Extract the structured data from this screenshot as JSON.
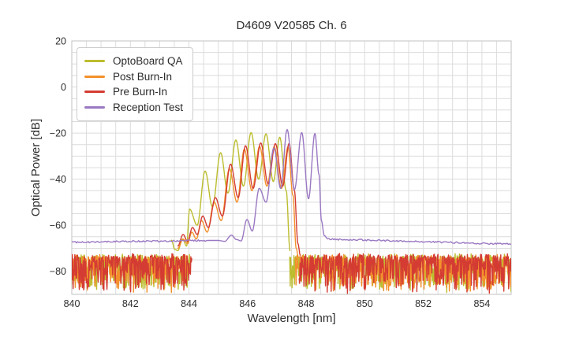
{
  "chart_data": {
    "type": "line",
    "title": "D4609 V20585 Ch. 6",
    "xlabel": "Wavelength [nm]",
    "ylabel": "Optical Power [dB]",
    "xlim": [
      840,
      855
    ],
    "ylim": [
      -90,
      20
    ],
    "xticks": [
      840,
      842,
      844,
      846,
      848,
      850,
      852,
      854
    ],
    "yticks": [
      20,
      0,
      -20,
      -40,
      -60,
      -80
    ],
    "grid": {
      "x_step": 0.5,
      "y_step": 5,
      "color": "#dcdcdc",
      "border_color": "#cccccc"
    },
    "legend": {
      "position": "upper-left"
    },
    "series": [
      {
        "name": "OptoBoard QA",
        "color": "#bcbd2f",
        "peaks_nm_db": [
          [
            844.02,
            -53
          ],
          [
            844.55,
            -36.5
          ],
          [
            845.08,
            -28.5
          ],
          [
            845.6,
            -23
          ],
          [
            846.12,
            -19.8
          ],
          [
            846.63,
            -20.3
          ],
          [
            847.1,
            -21.8
          ]
        ],
        "profile": [
          [
            843.4,
            -66.5
          ],
          [
            843.52,
            -70.5
          ],
          [
            843.62,
            -71
          ],
          [
            843.78,
            -66
          ],
          [
            843.92,
            -69
          ],
          [
            844.02,
            -53
          ],
          [
            844.28,
            -60
          ],
          [
            844.55,
            -36.5
          ],
          [
            844.8,
            -52
          ],
          [
            845.08,
            -28.5
          ],
          [
            845.33,
            -46
          ],
          [
            845.6,
            -23
          ],
          [
            845.86,
            -43
          ],
          [
            846.12,
            -19.8
          ],
          [
            846.38,
            -40
          ],
          [
            846.63,
            -20.3
          ],
          [
            846.88,
            -41
          ],
          [
            847.1,
            -21.8
          ],
          [
            847.32,
            -45
          ],
          [
            847.45,
            -71
          ]
        ],
        "noise": [
          {
            "x": [
              840,
              844.05
            ],
            "level_db": [
              -73.3,
              -73.3
            ],
            "jitter_db": 1.0,
            "spike_db": 15.0,
            "step": 0.016,
            "seed": 11
          },
          {
            "x": [
              847.44,
              855
            ],
            "level_db": [
              -73.3,
              -73.3
            ],
            "jitter_db": 1.0,
            "spike_db": 15.0,
            "step": 0.016,
            "seed": 12
          }
        ]
      },
      {
        "name": "Post Burn-In",
        "color": "#f3902c",
        "peaks_nm_db": [
          [
            844.86,
            -50
          ],
          [
            845.38,
            -35.5
          ],
          [
            845.89,
            -27
          ],
          [
            846.41,
            -25.8
          ],
          [
            846.91,
            -26
          ],
          [
            847.38,
            -26
          ]
        ],
        "profile": [
          [
            843.62,
            -70
          ],
          [
            843.8,
            -66
          ],
          [
            843.95,
            -68
          ],
          [
            844.1,
            -63
          ],
          [
            844.25,
            -66
          ],
          [
            844.43,
            -58
          ],
          [
            844.62,
            -63
          ],
          [
            844.86,
            -50
          ],
          [
            845.1,
            -58
          ],
          [
            845.38,
            -35.5
          ],
          [
            845.64,
            -50
          ],
          [
            845.89,
            -27
          ],
          [
            846.15,
            -45
          ],
          [
            846.41,
            -25.8
          ],
          [
            846.66,
            -43
          ],
          [
            846.91,
            -26
          ],
          [
            847.16,
            -44
          ],
          [
            847.38,
            -26
          ],
          [
            847.55,
            -47
          ],
          [
            847.66,
            -70
          ],
          [
            847.74,
            -74
          ]
        ],
        "noise": [
          {
            "x": [
              840,
              844.0
            ],
            "level_db": [
              -73.6,
              -73.6
            ],
            "jitter_db": 1.0,
            "spike_db": 15.0,
            "step": 0.017,
            "seed": 21
          },
          {
            "x": [
              847.62,
              855
            ],
            "level_db": [
              -73.6,
              -73.6
            ],
            "jitter_db": 1.0,
            "spike_db": 15.0,
            "step": 0.017,
            "seed": 22
          }
        ]
      },
      {
        "name": "Pre Burn-In",
        "color": "#d43c33",
        "peaks_nm_db": [
          [
            844.9,
            -48
          ],
          [
            845.42,
            -33.5
          ],
          [
            845.93,
            -25.5
          ],
          [
            846.45,
            -24.3
          ],
          [
            846.95,
            -24.6
          ],
          [
            847.42,
            -24.5
          ]
        ],
        "profile": [
          [
            843.62,
            -69
          ],
          [
            843.8,
            -64
          ],
          [
            843.95,
            -67
          ],
          [
            844.12,
            -61
          ],
          [
            844.28,
            -64
          ],
          [
            844.47,
            -56
          ],
          [
            844.66,
            -61
          ],
          [
            844.9,
            -48
          ],
          [
            845.14,
            -56
          ],
          [
            845.42,
            -33.5
          ],
          [
            845.68,
            -48
          ],
          [
            845.93,
            -25.5
          ],
          [
            846.19,
            -44
          ],
          [
            846.45,
            -24.3
          ],
          [
            846.7,
            -42
          ],
          [
            846.95,
            -24.6
          ],
          [
            847.2,
            -43
          ],
          [
            847.42,
            -24.5
          ],
          [
            847.6,
            -45
          ],
          [
            847.72,
            -68
          ],
          [
            847.8,
            -73
          ]
        ],
        "noise": [
          {
            "x": [
              840,
              844.1
            ],
            "level_db": [
              -73.2,
              -73.2
            ],
            "jitter_db": 1.0,
            "spike_db": 15.5,
            "step": 0.015,
            "seed": 31
          },
          {
            "x": [
              847.76,
              855
            ],
            "level_db": [
              -73.2,
              -73.2
            ],
            "jitter_db": 1.0,
            "spike_db": 15.5,
            "step": 0.015,
            "seed": 32
          }
        ]
      },
      {
        "name": "Reception Test",
        "color": "#9a78c2",
        "peaks_nm_db": [
          [
            845.98,
            -57.5
          ],
          [
            846.4,
            -44
          ],
          [
            846.9,
            -26.5
          ],
          [
            847.35,
            -18.5
          ],
          [
            847.85,
            -19.8
          ],
          [
            848.3,
            -20.2
          ]
        ],
        "profile": [
          [
            844.62,
            -66.6
          ],
          [
            845.0,
            -66.6
          ],
          [
            845.22,
            -67.0
          ],
          [
            845.45,
            -64.3
          ],
          [
            845.62,
            -66.2
          ],
          [
            845.78,
            -66.8
          ],
          [
            845.98,
            -57.5
          ],
          [
            846.16,
            -62.5
          ],
          [
            846.4,
            -44.0
          ],
          [
            846.63,
            -50.0
          ],
          [
            846.9,
            -26.5
          ],
          [
            847.13,
            -44.0
          ],
          [
            847.35,
            -18.5
          ],
          [
            847.6,
            -44.5
          ],
          [
            847.85,
            -19.8
          ],
          [
            848.08,
            -48.5
          ],
          [
            848.3,
            -20.2
          ],
          [
            848.44,
            -38.0
          ],
          [
            848.52,
            -58.0
          ],
          [
            848.62,
            -64.5
          ],
          [
            848.74,
            -65.9
          ]
        ],
        "noise": [
          {
            "x": [
              840,
              844.62
            ],
            "level_db": [
              -67.4,
              -66.6
            ],
            "jitter_db": 0.35,
            "spike_db": 0,
            "step": 0.04,
            "seed": 41
          },
          {
            "x": [
              848.74,
              855
            ],
            "level_db": [
              -66.0,
              -68.2
            ],
            "jitter_db": 0.35,
            "spike_db": 0,
            "step": 0.04,
            "seed": 42
          }
        ]
      }
    ]
  }
}
